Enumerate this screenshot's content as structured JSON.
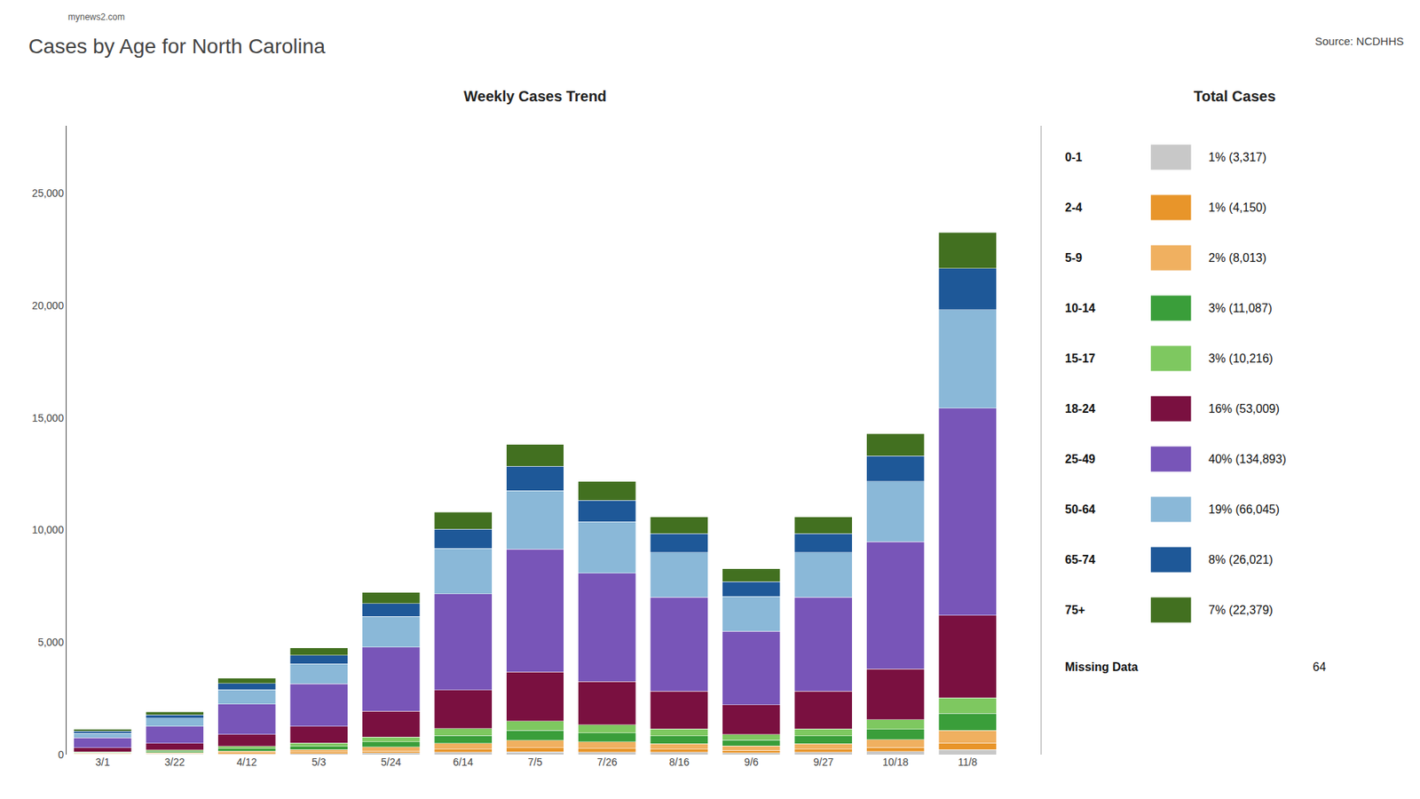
{
  "chart_data": {
    "type": "bar",
    "title": "Cases by Age for North Carolina",
    "subtitle": "Weekly Cases Trend",
    "legend_title": "Total Cases",
    "source": "Source: NCDHHS",
    "watermark": "mynews2.com",
    "stacked": true,
    "grid": false,
    "legend": "right",
    "categories": [
      "3/1",
      "3/22",
      "4/12",
      "5/3",
      "5/24",
      "6/14",
      "7/5",
      "7/26",
      "8/16",
      "9/6",
      "9/27",
      "10/18",
      "11/8"
    ],
    "series": [
      {
        "name": "0-1",
        "color": "#c8c8c8",
        "total_label": "1% (3,317)",
        "values": [
          10,
          18,
          32,
          45,
          68,
          102,
          130,
          115,
          100,
          78,
          100,
          135,
          220
        ]
      },
      {
        "name": "2-4",
        "color": "#e8952a",
        "total_label": "1% (4,150)",
        "values": [
          14,
          24,
          42,
          60,
          91,
          136,
          173,
          153,
          133,
          104,
          133,
          180,
          293
        ]
      },
      {
        "name": "5-9",
        "color": "#f0b060",
        "total_label": "2% (8,013)",
        "values": [
          27,
          46,
          82,
          115,
          175,
          261,
          334,
          295,
          256,
          200,
          256,
          346,
          564
        ]
      },
      {
        "name": "10-14",
        "color": "#3a9e3a",
        "total_label": "3% (11,087)",
        "values": [
          37,
          63,
          110,
          155,
          236,
          352,
          450,
          397,
          345,
          270,
          345,
          467,
          760
        ]
      },
      {
        "name": "15-17",
        "color": "#7ec860",
        "total_label": "3% (10,216)",
        "values": [
          34,
          57,
          100,
          140,
          213,
          318,
          407,
          359,
          312,
          244,
          312,
          421,
          686
        ]
      },
      {
        "name": "18-24",
        "color": "#7a1040",
        "total_label": "16% (53,009)",
        "values": [
          178,
          302,
          540,
          752,
          1145,
          1710,
          2188,
          1929,
          1677,
          1312,
          1677,
          2265,
          3686
        ]
      },
      {
        "name": "25-49",
        "color": "#7855b8",
        "total_label": "40% (134,893)",
        "values": [
          444,
          756,
          1350,
          1881,
          2863,
          4275,
          5469,
          4823,
          4192,
          3280,
          4192,
          5662,
          9212
        ]
      },
      {
        "name": "50-64",
        "color": "#8ab8d8",
        "total_label": "19% (66,045)",
        "values": [
          211,
          359,
          642,
          894,
          1361,
          2033,
          2601,
          2293,
          1993,
          1559,
          1993,
          2692,
          4379
        ]
      },
      {
        "name": "65-74",
        "color": "#1e5898",
        "total_label": "8% (26,021)",
        "values": [
          89,
          151,
          270,
          376,
          572,
          855,
          1094,
          964,
          838,
          656,
          838,
          1133,
          1843
        ]
      },
      {
        "name": "75+",
        "color": "#427020",
        "total_label": "7% (22,379)",
        "values": [
          78,
          132,
          236,
          329,
          500,
          748,
          957,
          843,
          733,
          574,
          733,
          991,
          1612
        ]
      }
    ],
    "missing_data": {
      "label": "Missing Data",
      "value": 64
    },
    "ylim": [
      0,
      28000
    ],
    "yticks": [
      0,
      {
        "value": 5000,
        "label": "5,000"
      },
      {
        "value": 10000,
        "label": "10,000"
      },
      {
        "value": 15000,
        "label": "15,000"
      },
      {
        "value": 20000,
        "label": "20,000"
      },
      {
        "value": 25000,
        "label": "25,000"
      }
    ]
  }
}
